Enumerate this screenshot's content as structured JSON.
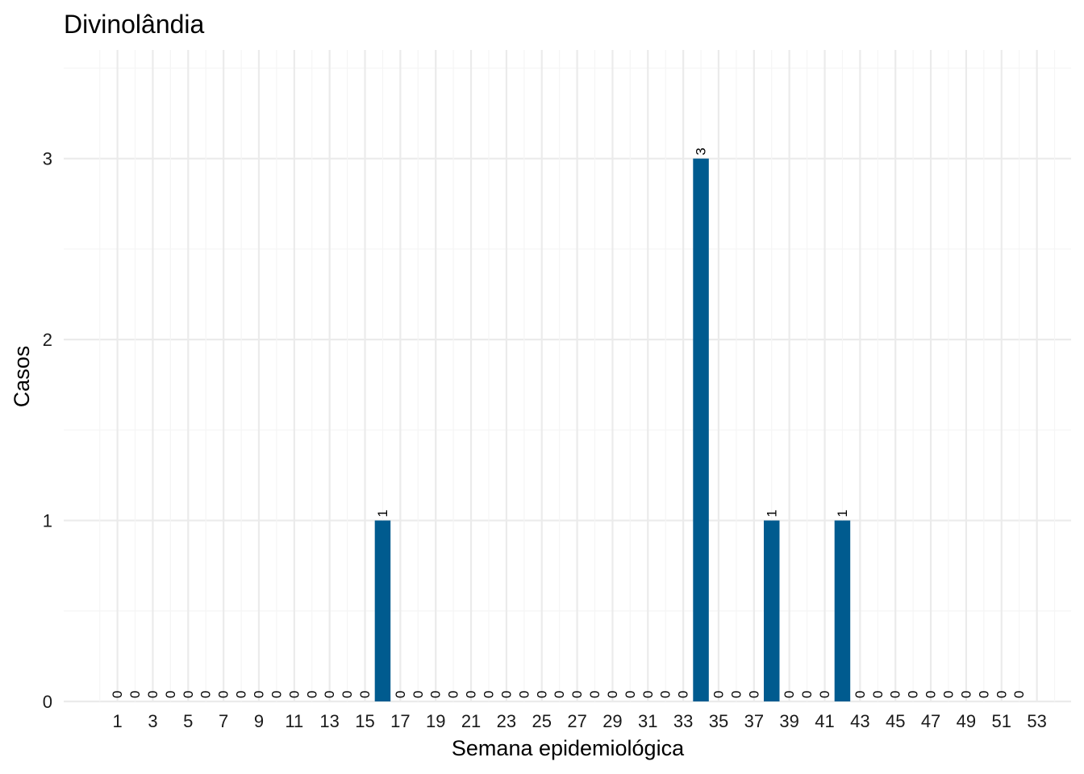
{
  "chart_data": {
    "type": "bar",
    "title": "Divinolândia",
    "xlabel": "Semana epidemiológica",
    "ylabel": "Casos",
    "categories": [
      1,
      2,
      3,
      4,
      5,
      6,
      7,
      8,
      9,
      10,
      11,
      12,
      13,
      14,
      15,
      16,
      17,
      18,
      19,
      20,
      21,
      22,
      23,
      24,
      25,
      26,
      27,
      28,
      29,
      30,
      31,
      32,
      33,
      34,
      35,
      36,
      37,
      38,
      39,
      40,
      41,
      42,
      43,
      44,
      45,
      46,
      47,
      48,
      49,
      50,
      51,
      52,
      53
    ],
    "values": [
      0,
      0,
      0,
      0,
      0,
      0,
      0,
      0,
      0,
      0,
      0,
      0,
      0,
      0,
      0,
      1,
      0,
      0,
      0,
      0,
      0,
      0,
      0,
      0,
      0,
      0,
      0,
      0,
      0,
      0,
      0,
      0,
      0,
      3,
      0,
      0,
      0,
      1,
      0,
      0,
      0,
      1,
      0,
      0,
      0,
      0,
      0,
      0,
      0,
      0,
      0,
      0,
      null
    ],
    "x_tick_labels": [
      "1",
      "3",
      "5",
      "7",
      "9",
      "11",
      "13",
      "15",
      "17",
      "19",
      "21",
      "23",
      "25",
      "27",
      "29",
      "31",
      "33",
      "35",
      "37",
      "39",
      "41",
      "43",
      "45",
      "47",
      "49",
      "51",
      "53"
    ],
    "y_ticks": [
      0,
      1,
      2,
      3
    ],
    "ylim": [
      0,
      3.6
    ],
    "grid": true,
    "legend": "none",
    "colors": {
      "bar": "#005b8f",
      "grid_major": "#ebebeb",
      "grid_minor": "#f5f5f5"
    }
  }
}
